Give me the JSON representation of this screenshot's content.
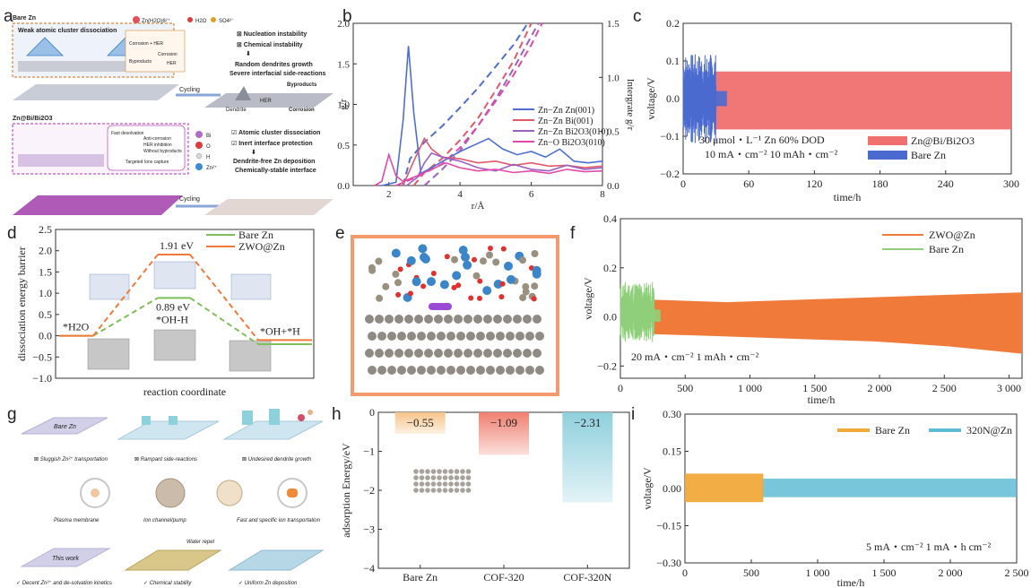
{
  "panel_labels": [
    "a",
    "b",
    "c",
    "d",
    "e",
    "f",
    "g",
    "h",
    "i"
  ],
  "a": {
    "bare_title": "Bare Zn",
    "bare_box_title": "Weak atomic cluster dissociation",
    "species": [
      "Zn(H2O)6²⁺",
      "H2O",
      "SO4²⁻"
    ],
    "bare_mini": [
      "Corrosion + HER",
      "Byproducts",
      "Corrosion",
      "HER"
    ],
    "bare_issues": [
      "⊠ Nucleation instability",
      "⊠ Chemical instability",
      "Random dendrites growth",
      "Severe interfacial side-reactions"
    ],
    "bare_bottom": [
      "Cycling",
      "Dendrite",
      "HER",
      "Byproducts",
      "Corrosion"
    ],
    "mod_title": "Zn@Bi/Bi2O3",
    "mod_mini": [
      "Fast desolvation",
      "Anti-corrosion",
      "HER inhibition",
      "Without byproducts",
      "Targeted Ions capture"
    ],
    "legend": [
      "Bi",
      "O",
      "H",
      "Zn²⁺"
    ],
    "mod_benefits": [
      "☑ Atomic cluster dissociation",
      "☑ Inert interface protection",
      "Dendrite-free Zn deposition",
      "Chemically-stable interface"
    ],
    "cycling": "Cycling"
  },
  "b": {
    "chart_data": {
      "type": "line",
      "xlabel": "r/Å",
      "ylabel": "g/r",
      "y2label": "Intergrate g/r",
      "xlim": [
        0,
        8
      ],
      "ylim": [
        0,
        2.0
      ],
      "y2lim": [
        0,
        1.5
      ],
      "xticks": [
        2,
        4,
        6,
        8
      ],
      "yticks": [
        0.0,
        0.5,
        1.0,
        1.5,
        2.0
      ],
      "y2ticks": [
        0.0,
        0.5,
        1.0,
        1.5
      ],
      "legend_position": "center-right",
      "series": [
        {
          "name": "Zn−Zn Zn(001)",
          "color": "#4f6fce",
          "x": [
            1.8,
            2.2,
            2.4,
            2.55,
            2.7,
            2.9,
            3.2,
            3.6,
            4.0,
            4.4,
            4.8,
            5.2,
            5.6,
            6.0,
            6.4,
            6.8,
            7.2,
            7.6,
            8.0
          ],
          "y": [
            0,
            0.04,
            0.8,
            1.72,
            0.9,
            0.15,
            0.22,
            0.32,
            0.42,
            0.5,
            0.58,
            0.45,
            0.38,
            0.42,
            0.35,
            0.45,
            0.3,
            0.28,
            0.3
          ]
        },
        {
          "name": "Zn−Zn Bi(001)",
          "color": "#e05a6a",
          "x": [
            2.4,
            2.7,
            3.0,
            3.2,
            3.5,
            4.0,
            4.5,
            5.0,
            5.5,
            6.0,
            6.5,
            7.0,
            7.5,
            8.0
          ],
          "y": [
            0,
            0.3,
            0.58,
            0.45,
            0.35,
            0.33,
            0.28,
            0.3,
            0.25,
            0.28,
            0.24,
            0.25,
            0.22,
            0.24
          ]
        },
        {
          "name": "Zn−Zn Bi2O3(010)",
          "color": "#9a62c0",
          "x": [
            2.5,
            2.8,
            3.0,
            3.2,
            3.5,
            4.0,
            4.5,
            5.0,
            5.5,
            6.0,
            6.5,
            7.0,
            7.5,
            8.0
          ],
          "y": [
            0,
            0.1,
            0.28,
            0.4,
            0.35,
            0.3,
            0.22,
            0.18,
            0.26,
            0.2,
            0.18,
            0.25,
            0.2,
            0.22
          ]
        },
        {
          "name": "Zn−O Bi2O3(010)",
          "color": "#e04aa8",
          "x": [
            1.6,
            1.8,
            2.0,
            2.2,
            2.4,
            2.8,
            3.2,
            3.6,
            4.0,
            4.5,
            5.0,
            5.5,
            6.0,
            6.5,
            7.0,
            7.5,
            8.0
          ],
          "y": [
            0,
            0.05,
            0.38,
            0.12,
            0.05,
            0.12,
            0.2,
            0.28,
            0.22,
            0.18,
            0.2,
            0.16,
            0.18,
            0.15,
            0.2,
            0.17,
            0.18
          ]
        }
      ],
      "integrated": [
        {
          "color": "#4f6fce",
          "x": [
            2.4,
            2.6,
            3.0,
            3.5,
            4.0,
            4.5,
            5.0,
            5.5,
            5.9
          ],
          "y": [
            0,
            0.25,
            0.4,
            0.55,
            0.72,
            0.9,
            1.1,
            1.3,
            1.5
          ]
        },
        {
          "color": "#e05a6a",
          "x": [
            2.7,
            3.0,
            3.5,
            4.0,
            4.5,
            5.0,
            5.5,
            6.0
          ],
          "y": [
            0,
            0.12,
            0.25,
            0.42,
            0.62,
            0.88,
            1.15,
            1.5
          ]
        },
        {
          "color": "#9a62c0",
          "x": [
            3.0,
            3.5,
            4.0,
            4.5,
            5.0,
            5.5,
            6.0,
            6.2
          ],
          "y": [
            0,
            0.15,
            0.32,
            0.55,
            0.8,
            1.08,
            1.38,
            1.5
          ]
        },
        {
          "color": "#e04aa8",
          "x": [
            2.2,
            2.8,
            3.5,
            4.0,
            4.5,
            5.0,
            5.5,
            6.0,
            6.3
          ],
          "y": [
            0,
            0.08,
            0.2,
            0.35,
            0.55,
            0.78,
            1.02,
            1.3,
            1.5
          ]
        }
      ]
    }
  },
  "c": {
    "chart_data": {
      "type": "line",
      "xlabel": "time/h",
      "ylabel": "voltage/V",
      "xlim": [
        0,
        300
      ],
      "ylim": [
        -0.2,
        0.2
      ],
      "xticks": [
        0,
        60,
        120,
        180,
        240,
        300
      ],
      "yticks": [
        -0.2,
        -0.1,
        0.0,
        0.1,
        0.2
      ],
      "legend_position": "bottom-right",
      "series": [
        {
          "name": "Zn@Bi/Bi2O3",
          "color": "#f07070",
          "x_range": [
            0,
            300
          ],
          "amplitude": [
            0.07,
            -0.08
          ]
        },
        {
          "name": "Bare Zn",
          "color": "#4a6ad0",
          "x_range": [
            0,
            30
          ],
          "amplitude": [
            0.1,
            -0.1
          ]
        }
      ],
      "annotations": [
        "30 μmol・L⁻¹ Zn  60% DOD",
        "10 mA・cm⁻²  10 mAh・cm⁻²"
      ]
    }
  },
  "d": {
    "chart_data": {
      "type": "line",
      "xlabel": "reaction coordinate",
      "ylabel": "dissociation energy barrier",
      "ylim": [
        -1.0,
        2.5
      ],
      "yticks": [
        -1.0,
        -0.5,
        0.0,
        0.5,
        1.0,
        1.5,
        2.0,
        2.5
      ],
      "legend_position": "top-right",
      "states": [
        "*H2O",
        "*OH-H",
        "*OH+*H"
      ],
      "series": [
        {
          "name": "Bare Zn",
          "color": "#7fbf5a",
          "y": [
            0,
            0.89,
            -0.2
          ]
        },
        {
          "name": "ZWO@Zn",
          "color": "#f07a3a",
          "y": [
            0,
            1.91,
            -0.1
          ]
        }
      ],
      "annotations": [
        "1.91 eV",
        "0.89 eV",
        "*OH-H",
        "*H2O",
        "*OH+*H"
      ]
    }
  },
  "f": {
    "chart_data": {
      "type": "line",
      "xlabel": "time/h",
      "ylabel": "voltage/V",
      "xlim": [
        0,
        3100
      ],
      "ylim": [
        -0.25,
        0.4
      ],
      "xticks": [
        0,
        500,
        1000,
        1500,
        2000,
        2500,
        3000
      ],
      "yticks": [
        -0.2,
        0.0,
        0.2,
        0.4
      ],
      "legend_position": "top-right",
      "series": [
        {
          "name": "ZWO@Zn",
          "color": "#f07a3a",
          "x_range": [
            0,
            3100
          ]
        },
        {
          "name": "Bare Zn",
          "color": "#8fcf7a",
          "x_range": [
            0,
            300
          ]
        }
      ],
      "annotations": [
        "20 mA・cm⁻²  1 mAh・cm⁻²"
      ]
    }
  },
  "g": {
    "top": [
      "Bare Zn",
      "⊠ Sluggish Zn²⁺ transportation",
      "⊠ Rampant side-reactions",
      "⊠ Undesired dendrite growth"
    ],
    "middle": [
      "Plasma membrane",
      "Ion channel/pump",
      "Fast and specific ion transportation"
    ],
    "bottom": [
      "This work",
      "Water repel",
      "✓ Decent Zn²⁺ and de-solvation kinetics",
      "✓ Chemical stability",
      "✓ Uniform Zn deposition"
    ]
  },
  "h": {
    "chart_data": {
      "type": "bar",
      "ylabel": "adsorption Energy/eV",
      "categories": [
        "Bare Zn",
        "COF-320",
        "COF-320N"
      ],
      "values": [
        -0.55,
        -1.09,
        -2.31
      ],
      "value_labels": [
        "−0.55",
        "−1.09",
        "−2.31"
      ],
      "ylim": [
        -4,
        0
      ],
      "yticks": [
        0,
        -1,
        -2,
        -3,
        -4
      ],
      "colors": [
        "#f6c48a",
        "#f08070",
        "#8fd0dd"
      ]
    }
  },
  "i": {
    "chart_data": {
      "type": "line",
      "xlabel": "time/h",
      "ylabel": "voltage/V",
      "xlim": [
        0,
        2500
      ],
      "ylim": [
        -0.3,
        0.3
      ],
      "xticks": [
        0,
        500,
        1000,
        1500,
        2000,
        2500
      ],
      "yticks": [
        -0.3,
        -0.15,
        0.0,
        0.15,
        0.3
      ],
      "ytick_labels": [
        "−0.30",
        "−0.15",
        "0.00",
        "0.15",
        "0.30"
      ],
      "legend_position": "top-center",
      "series": [
        {
          "name": "Bare Zn",
          "color": "#f2a93b",
          "x_range": [
            0,
            590
          ]
        },
        {
          "name": "320N@Zn",
          "color": "#5fbcd3",
          "x_range": [
            0,
            2500
          ]
        }
      ],
      "annotations": [
        "5 mA・cm⁻²  1 mA・h cm⁻²"
      ]
    }
  }
}
